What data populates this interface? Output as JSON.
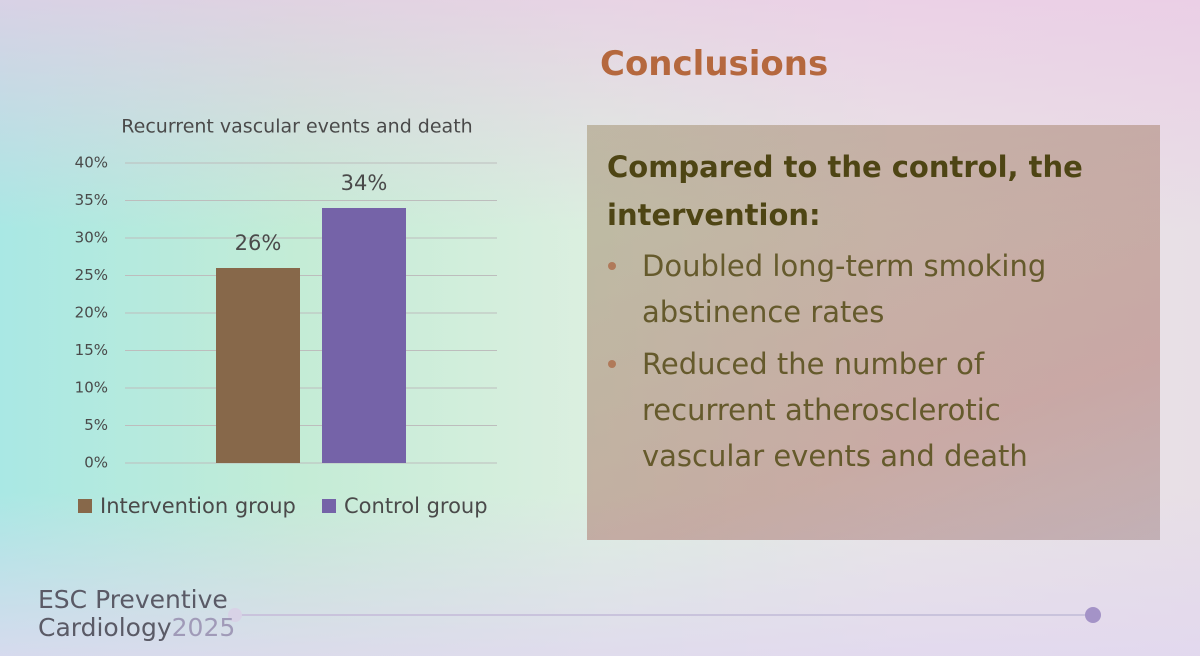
{
  "slide_title": "Conclusions",
  "chart_data": {
    "type": "bar",
    "title": "Recurrent vascular events and death",
    "categories": [
      null
    ],
    "series": [
      {
        "name": "Intervention group",
        "color": "#87684a",
        "values": [
          26
        ],
        "value_labels": [
          "26%"
        ]
      },
      {
        "name": "Control group",
        "color": "#7563a8",
        "values": [
          34
        ],
        "value_labels": [
          "34%"
        ]
      }
    ],
    "ylim": [
      0,
      40
    ],
    "yticks": [
      {
        "value": 0,
        "label": "0%"
      },
      {
        "value": 5,
        "label": "5%"
      },
      {
        "value": 10,
        "label": "10%"
      },
      {
        "value": 15,
        "label": "15%"
      },
      {
        "value": 20,
        "label": "20%"
      },
      {
        "value": 25,
        "label": "25%"
      },
      {
        "value": 30,
        "label": "30%"
      },
      {
        "value": 35,
        "label": "35%"
      },
      {
        "value": 40,
        "label": "40%"
      }
    ],
    "grid": true,
    "legend": "bottom"
  },
  "box": {
    "heading": "Compared to the control, the intervention:",
    "bullets": [
      "Doubled long-term smoking abstinence rates",
      "Reduced the number of recurrent atherosclerotic vascular events and death"
    ]
  },
  "footer": {
    "line1": "ESC Preventive",
    "line2": "Cardiology",
    "year": "2025"
  }
}
